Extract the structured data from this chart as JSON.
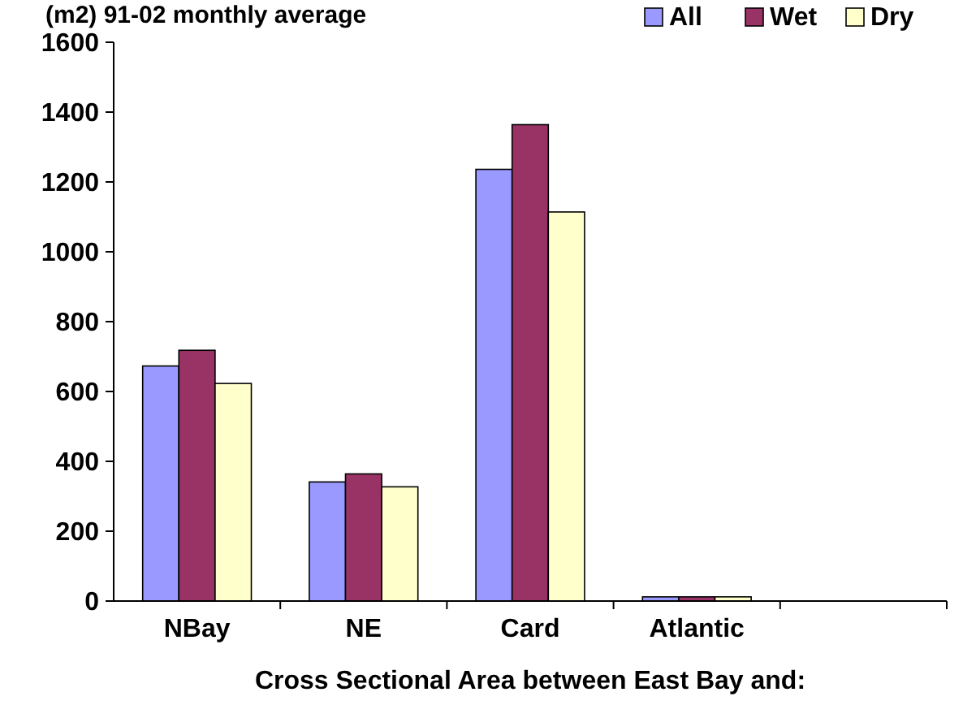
{
  "chart_data": {
    "type": "bar",
    "title": "(m2)  91-02 monthly average",
    "xlabel": "Cross Sectional Area between East Bay and:",
    "categories": [
      "NBay",
      "NE",
      "Card",
      "Atlantic",
      null
    ],
    "series": [
      {
        "name": "All",
        "color": "#9999ff",
        "values": [
          673,
          341,
          1236,
          12,
          null
        ]
      },
      {
        "name": "Wet",
        "color": "#993366",
        "values": [
          718,
          364,
          1364,
          12,
          null
        ]
      },
      {
        "name": "Dry",
        "color": "#ffffcc",
        "values": [
          623,
          327,
          1114,
          12,
          null
        ]
      }
    ],
    "ylim": [
      0,
      1600
    ],
    "yticks": [
      0,
      200,
      400,
      600,
      800,
      1000,
      1200,
      1400,
      1600
    ],
    "legend": "top right",
    "grid": false
  }
}
